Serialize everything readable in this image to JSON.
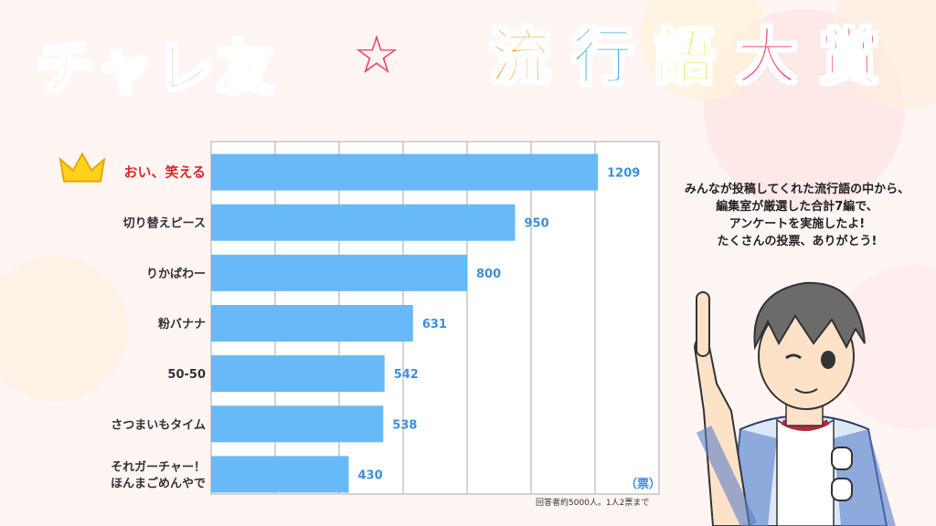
{
  "title": {
    "left": "チャレ友",
    "star": "☆",
    "right_chars": [
      "流",
      "行",
      "語",
      "大",
      "賞"
    ],
    "right_colors": [
      "#f7931e",
      "#36a9e1",
      "#ffd400",
      "#f0466e",
      "#f0466e"
    ]
  },
  "message": [
    "みんなが投稿してくれた流行語の中から、",
    "編集室が厳選した合計7編で、",
    "アンケートを実施したよ!",
    "たくさんの投票、ありがとう!"
  ],
  "unit": "（票）",
  "note": "回答者約5000人。1人2票まで",
  "colors": {
    "bar": "#67b9f7",
    "value": "#3a8fe0",
    "top_label": "#d72a2a",
    "grid": "#aaaaaa"
  },
  "chart_data": {
    "type": "bar",
    "orientation": "horizontal",
    "categories": [
      "おい、笑える",
      "切り替えピース",
      "りかぱわー",
      "粉バナナ",
      "50-50",
      "さつまいもタイム",
      "それガーチャー！ほんまごめんやで"
    ],
    "category_lines": [
      [
        "おい、笑える"
      ],
      [
        "切り替えピース"
      ],
      [
        "りかぱわー"
      ],
      [
        "粉バナナ"
      ],
      [
        "50-50"
      ],
      [
        "さつまいもタイム"
      ],
      [
        "それガーチャー！",
        "ほんまごめんやで"
      ]
    ],
    "values": [
      1209,
      950,
      800,
      631,
      542,
      538,
      430
    ],
    "xlim": [
      0,
      1400
    ],
    "grid_step": 200,
    "grid": true,
    "highlight_first": true
  }
}
